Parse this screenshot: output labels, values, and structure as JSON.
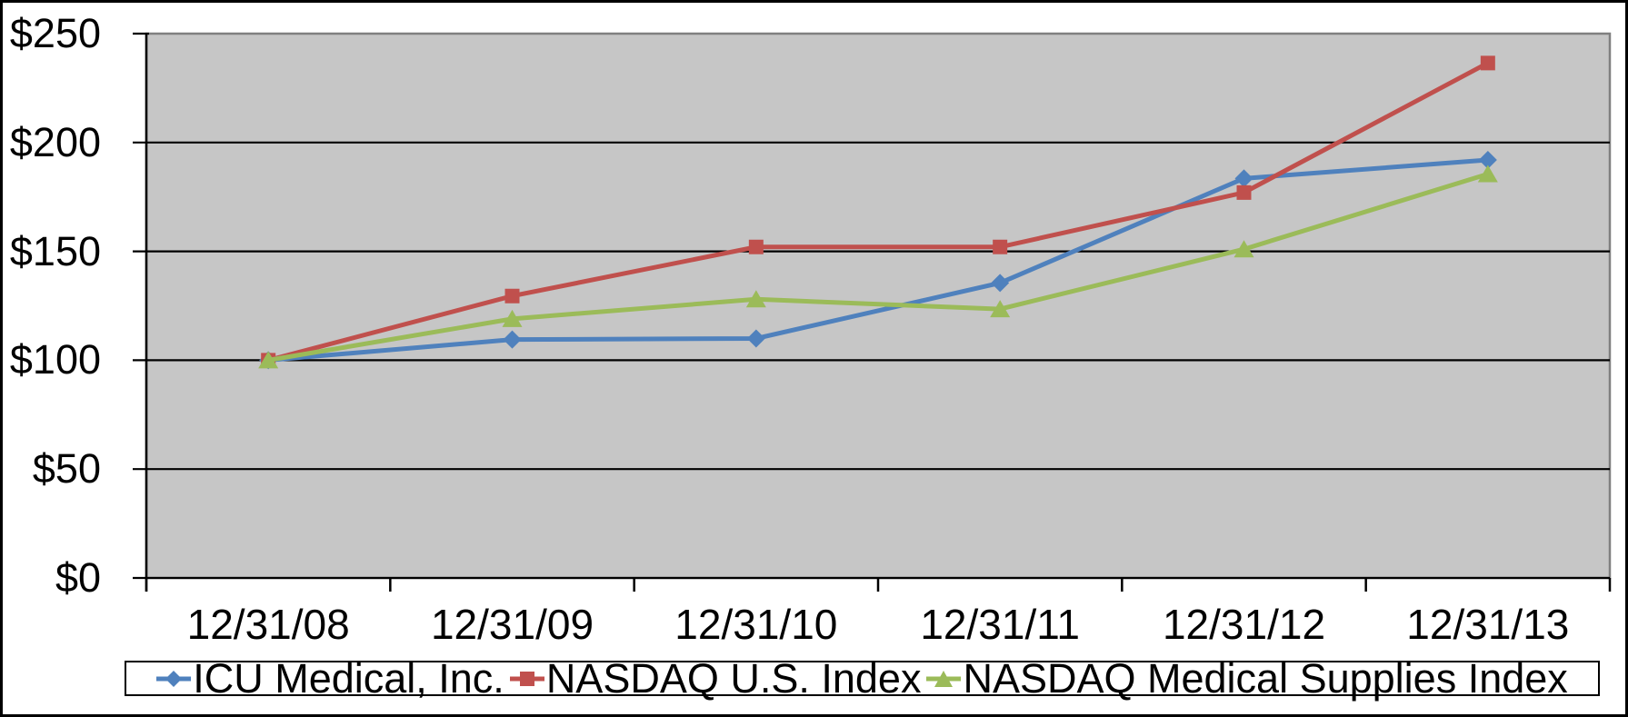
{
  "figure": {
    "kind": "stock-performance-comparison-graph"
  },
  "chart_data": {
    "type": "line",
    "title": "",
    "xlabel": "",
    "ylabel": "",
    "categories": [
      "12/31/08",
      "12/31/09",
      "12/31/10",
      "12/31/11",
      "12/31/12",
      "12/31/13"
    ],
    "series": [
      {
        "name": "ICU Medical, Inc.",
        "color": "#4F81BD",
        "marker": "diamond",
        "values": [
          100,
          109.5,
          110,
          135.5,
          183.5,
          192
        ]
      },
      {
        "name": "NASDAQ U.S. Index",
        "color": "#C0504D",
        "marker": "square",
        "values": [
          100,
          129.5,
          152,
          152,
          177,
          236.5
        ]
      },
      {
        "name": "NASDAQ Medical Supplies Index",
        "color": "#9BBB59",
        "marker": "triangle",
        "values": [
          100,
          119,
          128,
          123.5,
          151,
          185.5
        ]
      }
    ],
    "y_tick_labels": [
      "$0",
      "$50",
      "$100",
      "$150",
      "$200",
      "$250"
    ],
    "y_tick_values": [
      0,
      50,
      100,
      150,
      200,
      250
    ],
    "ylim": [
      0,
      250
    ],
    "grid": true,
    "legend_position": "bottom",
    "plot_background_color": "#C6C6C6",
    "plot_border_color": "#808080",
    "gridline_color": "#000000",
    "axis_color": "#000000"
  }
}
